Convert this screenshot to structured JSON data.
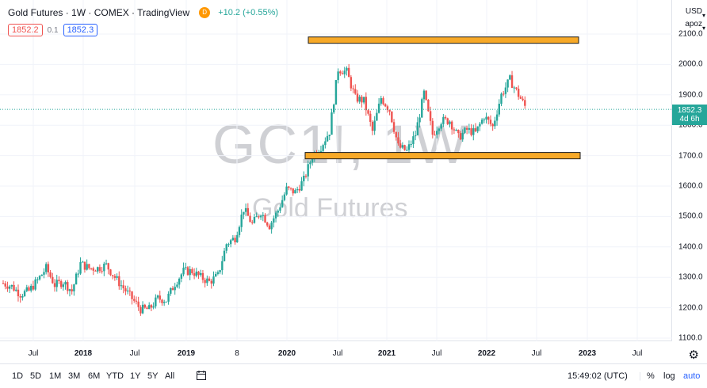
{
  "header": {
    "title": "Gold Futures · 1W · COMEX · TradingView",
    "badge": "D",
    "change": "+10.2 (+0.55%)",
    "bid": "1852.2",
    "spread": "0.1",
    "ask": "1852.3"
  },
  "price_axis": {
    "currency": "USD",
    "currency_arrow": "▾",
    "scale_mode": "apoz",
    "scale_arrow": "▾",
    "ticks": [
      "2100.0",
      "2000.0",
      "1900.0",
      "1800.0",
      "1700.0",
      "1600.0",
      "1500.0",
      "1400.0",
      "1300.0",
      "1200.0",
      "1100.0"
    ],
    "last_price": "1852.3",
    "countdown": "4d 6h"
  },
  "time_axis": {
    "ticks": [
      {
        "label": "Jul",
        "bold": false
      },
      {
        "label": "2018",
        "bold": true
      },
      {
        "label": "Jul",
        "bold": false
      },
      {
        "label": "2019",
        "bold": true
      },
      {
        "label": "8",
        "bold": false
      },
      {
        "label": "2020",
        "bold": true
      },
      {
        "label": "Jul",
        "bold": false
      },
      {
        "label": "2021",
        "bold": true
      },
      {
        "label": "Jul",
        "bold": false
      },
      {
        "label": "2022",
        "bold": true
      },
      {
        "label": "Jul",
        "bold": false
      },
      {
        "label": "2023",
        "bold": true
      },
      {
        "label": "Jul",
        "bold": false
      }
    ]
  },
  "watermark": {
    "symbol": "GC1!, 1W",
    "name": "Gold Futures"
  },
  "chart_data": {
    "type": "candlestick",
    "series": [
      {
        "x": "2017-04",
        "value": 1280
      },
      {
        "x": "2017-05",
        "value": 1270
      },
      {
        "x": "2017-06",
        "value": 1245
      },
      {
        "x": "2017-07",
        "value": 1255
      },
      {
        "x": "2017-08",
        "value": 1290
      },
      {
        "x": "2017-09",
        "value": 1330
      },
      {
        "x": "2017-10",
        "value": 1275
      },
      {
        "x": "2017-11",
        "value": 1285
      },
      {
        "x": "2017-12",
        "value": 1255
      },
      {
        "x": "2018-01",
        "value": 1345
      },
      {
        "x": "2018-02",
        "value": 1330
      },
      {
        "x": "2018-03",
        "value": 1330
      },
      {
        "x": "2018-04",
        "value": 1340
      },
      {
        "x": "2018-05",
        "value": 1300
      },
      {
        "x": "2018-06",
        "value": 1265
      },
      {
        "x": "2018-07",
        "value": 1230
      },
      {
        "x": "2018-08",
        "value": 1195
      },
      {
        "x": "2018-09",
        "value": 1195
      },
      {
        "x": "2018-10",
        "value": 1230
      },
      {
        "x": "2018-11",
        "value": 1225
      },
      {
        "x": "2018-12",
        "value": 1280
      },
      {
        "x": "2019-01",
        "value": 1320
      },
      {
        "x": "2019-02",
        "value": 1320
      },
      {
        "x": "2019-03",
        "value": 1300
      },
      {
        "x": "2019-04",
        "value": 1285
      },
      {
        "x": "2019-05",
        "value": 1305
      },
      {
        "x": "2019-06",
        "value": 1410
      },
      {
        "x": "2019-07",
        "value": 1430
      },
      {
        "x": "2019-08",
        "value": 1525
      },
      {
        "x": "2019-09",
        "value": 1475
      },
      {
        "x": "2019-10",
        "value": 1515
      },
      {
        "x": "2019-11",
        "value": 1470
      },
      {
        "x": "2019-12",
        "value": 1520
      },
      {
        "x": "2020-01",
        "value": 1590
      },
      {
        "x": "2020-02",
        "value": 1580
      },
      {
        "x": "2020-03",
        "value": 1620
      },
      {
        "x": "2020-04",
        "value": 1700
      },
      {
        "x": "2020-05",
        "value": 1730
      },
      {
        "x": "2020-06",
        "value": 1780
      },
      {
        "x": "2020-07",
        "value": 1985
      },
      {
        "x": "2020-08",
        "value": 1975
      },
      {
        "x": "2020-09",
        "value": 1890
      },
      {
        "x": "2020-10",
        "value": 1880
      },
      {
        "x": "2020-11",
        "value": 1780
      },
      {
        "x": "2020-12",
        "value": 1890
      },
      {
        "x": "2021-01",
        "value": 1850
      },
      {
        "x": "2021-02",
        "value": 1730
      },
      {
        "x": "2021-03",
        "value": 1715
      },
      {
        "x": "2021-04",
        "value": 1770
      },
      {
        "x": "2021-05",
        "value": 1905
      },
      {
        "x": "2021-06",
        "value": 1770
      },
      {
        "x": "2021-07",
        "value": 1815
      },
      {
        "x": "2021-08",
        "value": 1815
      },
      {
        "x": "2021-09",
        "value": 1760
      },
      {
        "x": "2021-10",
        "value": 1785
      },
      {
        "x": "2021-11",
        "value": 1775
      },
      {
        "x": "2021-12",
        "value": 1830
      },
      {
        "x": "2022-01",
        "value": 1795
      },
      {
        "x": "2022-02",
        "value": 1900
      },
      {
        "x": "2022-03",
        "value": 1950
      },
      {
        "x": "2022-04",
        "value": 1900
      },
      {
        "x": "2022-05",
        "value": 1850
      }
    ],
    "ylim": [
      1100,
      2100
    ],
    "levels": [
      {
        "name": "resistance",
        "value": 2080
      },
      {
        "name": "support",
        "value": 1700
      }
    ]
  },
  "bottom_bar": {
    "ranges": [
      "1D",
      "5D",
      "1M",
      "3M",
      "6M",
      "YTD",
      "1Y",
      "5Y",
      "All"
    ],
    "time": "15:49:02 (UTC)",
    "percent": "%",
    "log": "log",
    "auto": "auto"
  },
  "colors": {
    "up": "#26a69a",
    "down": "#ef5350",
    "zone": "#f7a928",
    "zone_border": "#1a1a1a",
    "accent": "#2962ff"
  }
}
